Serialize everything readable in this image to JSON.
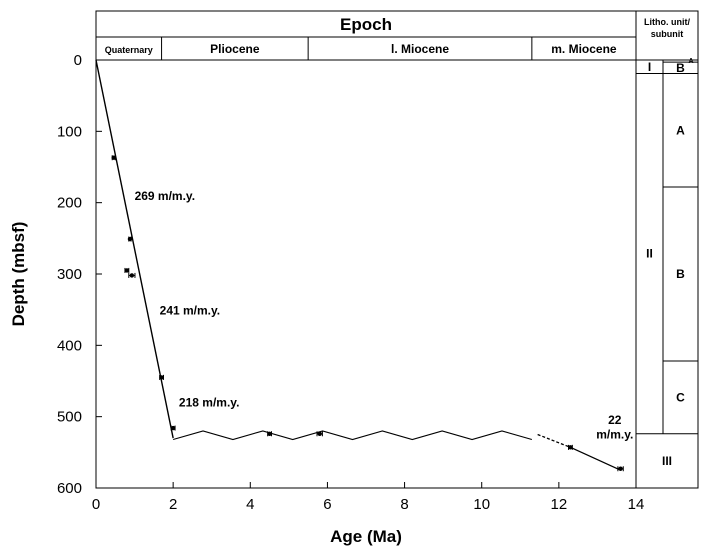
{
  "chart_data": {
    "type": "scatter",
    "title": "",
    "xlabel": "Age (Ma)",
    "ylabel": "Depth (mbsf)",
    "xlim": [
      0,
      14
    ],
    "ylim": [
      600,
      0
    ],
    "y_inverted": true,
    "grid": false,
    "x_ticks": [
      "0",
      "2",
      "4",
      "6",
      "8",
      "10",
      "12",
      "14"
    ],
    "y_ticks": [
      "0",
      "100",
      "200",
      "300",
      "400",
      "500",
      "600"
    ],
    "epoch_header": "Epoch",
    "epochs": [
      {
        "name": "Quaternary",
        "start": 0,
        "end": 1.7
      },
      {
        "name": "Pliocene",
        "start": 1.7,
        "end": 5.5
      },
      {
        "name": "l. Miocene",
        "start": 5.5,
        "end": 11.3
      },
      {
        "name": "m. Miocene",
        "start": 11.3,
        "end": 14
      }
    ],
    "litho_header_line1": "Litho. unit/",
    "litho_header_line2": "subunit",
    "litho_units": [
      {
        "name": "I",
        "top": 0,
        "bottom": 19
      },
      {
        "name": "II",
        "top": 19,
        "bottom": 524
      },
      {
        "name": "III",
        "top": 524,
        "bottom": 600
      }
    ],
    "litho_subunits": [
      {
        "name": "A",
        "top": 0,
        "bottom": 3
      },
      {
        "name": "B",
        "top": 3,
        "bottom": 19
      },
      {
        "name": "A",
        "top": 19,
        "bottom": 178
      },
      {
        "name": "B",
        "top": 178,
        "bottom": 422
      },
      {
        "name": "C",
        "top": 422,
        "bottom": 524
      }
    ],
    "points": [
      {
        "x": 0.46,
        "y": 137,
        "xerr": 0.04
      },
      {
        "x": 0.88,
        "y": 251,
        "xerr": 0.03
      },
      {
        "x": 0.8,
        "y": 295,
        "xerr": 0.05
      },
      {
        "x": 0.93,
        "y": 302,
        "xerr": 0.08
      },
      {
        "x": 1.7,
        "y": 445,
        "xerr": 0.05
      },
      {
        "x": 2.0,
        "y": 516,
        "xerr": 0.05
      },
      {
        "x": 4.5,
        "y": 524,
        "xerr": 0.05
      },
      {
        "x": 5.8,
        "y": 524,
        "xerr": 0.07
      },
      {
        "x": 12.3,
        "y": 543,
        "xerr": 0.05
      },
      {
        "x": 13.6,
        "y": 573,
        "xerr": 0.07
      }
    ],
    "age_depth_line": [
      [
        0,
        0
      ],
      [
        2.0,
        530
      ]
    ],
    "hiatus_zigzag": {
      "x_start": 2.0,
      "x_end": 11.45,
      "y_top": 520,
      "y_bottom": 532,
      "period": 1.55
    },
    "dashed_segment": [
      [
        11.45,
        525
      ],
      [
        12.3,
        543
      ]
    ],
    "solid_segment": [
      [
        12.3,
        543
      ],
      [
        13.6,
        575
      ]
    ],
    "rate_annotations": [
      {
        "text": "269  m/m.y.",
        "x": 1.0,
        "y": 191
      },
      {
        "text": "241  m/m.y.",
        "x": 1.65,
        "y": 351
      },
      {
        "text": "218  m/m.y.",
        "x": 2.15,
        "y": 480
      },
      {
        "text": "22",
        "x": 13.45,
        "y": 505
      },
      {
        "text": "m/m.y.",
        "x": 13.45,
        "y": 525
      }
    ]
  }
}
